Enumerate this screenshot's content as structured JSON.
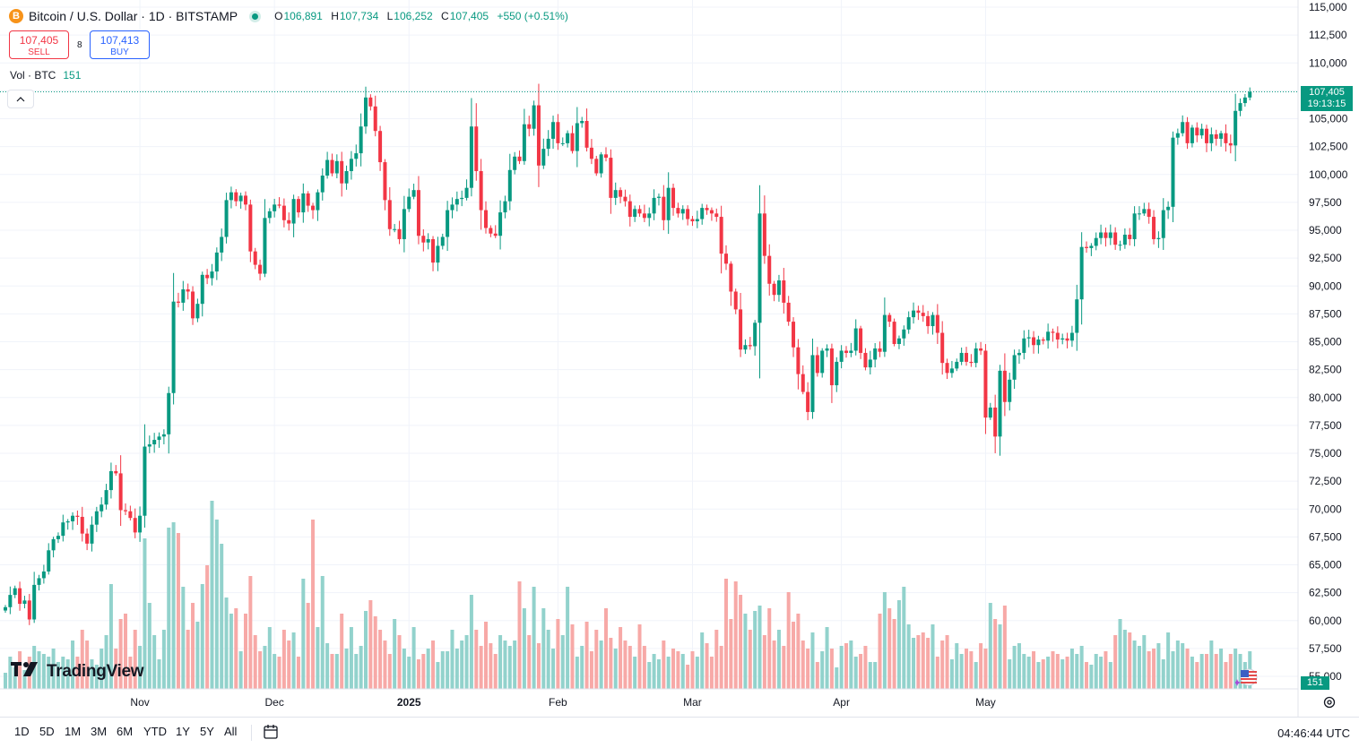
{
  "header": {
    "coin_icon_letter": "B",
    "symbol_title": "Bitcoin / U.S. Dollar · 1D · BITSTAMP",
    "status_dot": "market-open",
    "open_label": "O",
    "open": "106,891",
    "high_label": "H",
    "high": "107,734",
    "low_label": "L",
    "low": "106,252",
    "close_label": "C",
    "close": "107,405",
    "change": "+550 (+0.51%)"
  },
  "trade": {
    "sell_price": "107,405",
    "sell_label": "SELL",
    "spread": "8",
    "buy_price": "107,413",
    "buy_label": "BUY"
  },
  "volume_legend": {
    "label": "Vol · BTC",
    "value": "151"
  },
  "collapse_icon": "chevron-up",
  "logo_text": "TradingView",
  "price_badge": {
    "price": "107,405",
    "countdown": "19:13:15"
  },
  "volume_badge": "151",
  "bottom_bar": {
    "ranges": [
      "1D",
      "5D",
      "1M",
      "3M",
      "6M",
      "YTD",
      "1Y",
      "5Y",
      "All"
    ],
    "time": "04:46:44 UTC"
  },
  "colors": {
    "up": "#089981",
    "down": "#f23645",
    "vol_up": "#92d2cc",
    "vol_down": "#f7a9a7",
    "accent": "#2962ff"
  },
  "chart_data": {
    "type": "candlestick",
    "title": "Bitcoin / U.S. Dollar · 1D · BITSTAMP",
    "y_ticks": [
      115000,
      112500,
      110000,
      107500,
      105000,
      102500,
      100000,
      97500,
      95000,
      92500,
      90000,
      87500,
      85000,
      82500,
      80000,
      77500,
      75000,
      72500,
      70000,
      67500,
      65000,
      62500,
      60000,
      57500,
      55000
    ],
    "y_tick_labels": [
      "115,000",
      "112,500",
      "110,000",
      "107,500",
      "105,000",
      "102,500",
      "100,000",
      "97,500",
      "95,000",
      "92,500",
      "90,000",
      "87,500",
      "85,000",
      "82,500",
      "80,000",
      "77,500",
      "75,000",
      "72,500",
      "70,000",
      "67,500",
      "65,000",
      "62,500",
      "60,000",
      "57,500",
      "55,000"
    ],
    "ylim": [
      55000,
      115000
    ],
    "x_labels": [
      "Nov",
      "Dec",
      "2025",
      "Feb",
      "Mar",
      "Apr",
      "May"
    ],
    "current_price": 107405,
    "grid": true,
    "close": [
      61200,
      62300,
      62900,
      61500,
      61800,
      60100,
      63200,
      63800,
      64400,
      66300,
      67300,
      67600,
      68800,
      68900,
      69400,
      69300,
      67800,
      66900,
      68600,
      69800,
      70400,
      71700,
      73400,
      73200,
      69900,
      69800,
      69200,
      67900,
      69400,
      75600,
      75800,
      76200,
      76500,
      76700,
      80400,
      88600,
      88500,
      89700,
      89500,
      87100,
      88400,
      91000,
      90700,
      91300,
      93000,
      94400,
      97700,
      98400,
      97600,
      98100,
      97300,
      93100,
      91900,
      91100,
      96100,
      96700,
      97300,
      97200,
      95900,
      95600,
      97800,
      96600,
      98300,
      97200,
      96800,
      98400,
      99900,
      101300,
      100100,
      101200,
      99200,
      100300,
      101400,
      101900,
      104300,
      106900,
      106100,
      103900,
      101100,
      97700,
      95100,
      95100,
      94200,
      96900,
      98000,
      98600,
      94500,
      93900,
      94200,
      92100,
      93600,
      94400,
      96800,
      97300,
      97800,
      97900,
      98800,
      104300,
      100300,
      96800,
      95200,
      94700,
      94500,
      96600,
      97600,
      100400,
      101600,
      101200,
      104500,
      104100,
      106200,
      100800,
      102300,
      103200,
      104700,
      102800,
      102800,
      103700,
      102100,
      104600,
      104800,
      102400,
      101400,
      100100,
      101800,
      101500,
      97900,
      98600,
      98000,
      97600,
      96200,
      96900,
      96500,
      96100,
      96500,
      97900,
      98000,
      95900,
      98800,
      97000,
      96500,
      96900,
      96000,
      95800,
      96000,
      97000,
      96800,
      96500,
      96200,
      92900,
      92000,
      89500,
      87900,
      84300,
      84700,
      84600,
      86700,
      96500,
      92700,
      90200,
      89200,
      90500,
      88500,
      86800,
      84500,
      82100,
      80500,
      78700,
      83800,
      82200,
      84200,
      84400,
      81100,
      83200,
      84200,
      84000,
      84200,
      86200,
      84000,
      82700,
      83400,
      84400,
      84100,
      87400,
      86800,
      84800,
      85300,
      86100,
      87200,
      87800,
      87600,
      87300,
      86400,
      87400,
      85800,
      83100,
      82200,
      82600,
      83200,
      84000,
      83200,
      83100,
      84400,
      84200,
      78200,
      79100,
      76500,
      82400,
      79600,
      81600,
      83800,
      84000,
      85300,
      85400,
      84700,
      85200,
      85100,
      85900,
      85800,
      85200,
      85300,
      85100,
      85800,
      88800,
      93500,
      93400,
      93600,
      94300,
      94800,
      94300,
      94800,
      93700,
      93700,
      94600,
      94200,
      96500,
      96500,
      96900,
      96200,
      94200,
      94300,
      96800,
      97100,
      103300,
      103700,
      104700,
      102800,
      104200,
      103500,
      104100,
      102800,
      103600,
      103200,
      103700,
      102800,
      102600,
      105700,
      106400,
      106900,
      107405
    ],
    "volume_relative": [
      0.06,
      0.12,
      0.08,
      0.14,
      0.07,
      0.12,
      0.16,
      0.14,
      0.13,
      0.12,
      0.15,
      0.1,
      0.12,
      0.11,
      0.18,
      0.12,
      0.22,
      0.18,
      0.11,
      0.09,
      0.15,
      0.2,
      0.39,
      0.15,
      0.26,
      0.28,
      0.12,
      0.22,
      0.16,
      0.56,
      0.32,
      0.2,
      0.11,
      0.22,
      0.6,
      0.62,
      0.58,
      0.38,
      0.22,
      0.32,
      0.25,
      0.39,
      0.46,
      0.7,
      0.63,
      0.54,
      0.34,
      0.28,
      0.3,
      0.14,
      0.28,
      0.42,
      0.2,
      0.14,
      0.16,
      0.23,
      0.13,
      0.12,
      0.22,
      0.18,
      0.21,
      0.12,
      0.41,
      0.32,
      0.63,
      0.23,
      0.42,
      0.17,
      0.13,
      0.13,
      0.28,
      0.15,
      0.23,
      0.13,
      0.16,
      0.29,
      0.33,
      0.27,
      0.22,
      0.18,
      0.13,
      0.26,
      0.2,
      0.15,
      0.12,
      0.23,
      0.11,
      0.13,
      0.15,
      0.18,
      0.1,
      0.14,
      0.14,
      0.22,
      0.15,
      0.18,
      0.2,
      0.35,
      0.22,
      0.16,
      0.25,
      0.17,
      0.13,
      0.2,
      0.18,
      0.16,
      0.18,
      0.4,
      0.3,
      0.2,
      0.38,
      0.17,
      0.3,
      0.22,
      0.15,
      0.26,
      0.2,
      0.38,
      0.24,
      0.12,
      0.16,
      0.25,
      0.14,
      0.22,
      0.18,
      0.3,
      0.19,
      0.15,
      0.23,
      0.18,
      0.16,
      0.12,
      0.24,
      0.16,
      0.1,
      0.13,
      0.11,
      0.18,
      0.12,
      0.15,
      0.14,
      0.13,
      0.09,
      0.14,
      0.12,
      0.21,
      0.17,
      0.12,
      0.22,
      0.16,
      0.41,
      0.26,
      0.4,
      0.35,
      0.28,
      0.22,
      0.29,
      0.31,
      0.2,
      0.3,
      0.18,
      0.22,
      0.16,
      0.36,
      0.25,
      0.28,
      0.18,
      0.15,
      0.21,
      0.1,
      0.14,
      0.23,
      0.15,
      0.08,
      0.16,
      0.17,
      0.18,
      0.12,
      0.13,
      0.16,
      0.1,
      0.1,
      0.28,
      0.36,
      0.3,
      0.26,
      0.33,
      0.38,
      0.24,
      0.19,
      0.2,
      0.21,
      0.19,
      0.24,
      0.12,
      0.18,
      0.2,
      0.11,
      0.17,
      0.13,
      0.15,
      0.14,
      0.1,
      0.17,
      0.15,
      0.32,
      0.26,
      0.24,
      0.31,
      0.11,
      0.16,
      0.17,
      0.13,
      0.12,
      0.14,
      0.1,
      0.11,
      0.12,
      0.14,
      0.13,
      0.11,
      0.12,
      0.15,
      0.13,
      0.16,
      0.1,
      0.09,
      0.13,
      0.12,
      0.14,
      0.1,
      0.2,
      0.26,
      0.22,
      0.21,
      0.18,
      0.16,
      0.2,
      0.14,
      0.15,
      0.17,
      0.11,
      0.21,
      0.14,
      0.18,
      0.17,
      0.15,
      0.12,
      0.1,
      0.13,
      0.13,
      0.18,
      0.13,
      0.15,
      0.1,
      0.13,
      0.15,
      0.13,
      0.1,
      0.14,
      0.06
    ],
    "x_label_index": {
      "Nov": 28,
      "Dec": 56,
      "2025": 84,
      "Feb": 115,
      "Mar": 143,
      "Apr": 174,
      "May": 204
    }
  }
}
